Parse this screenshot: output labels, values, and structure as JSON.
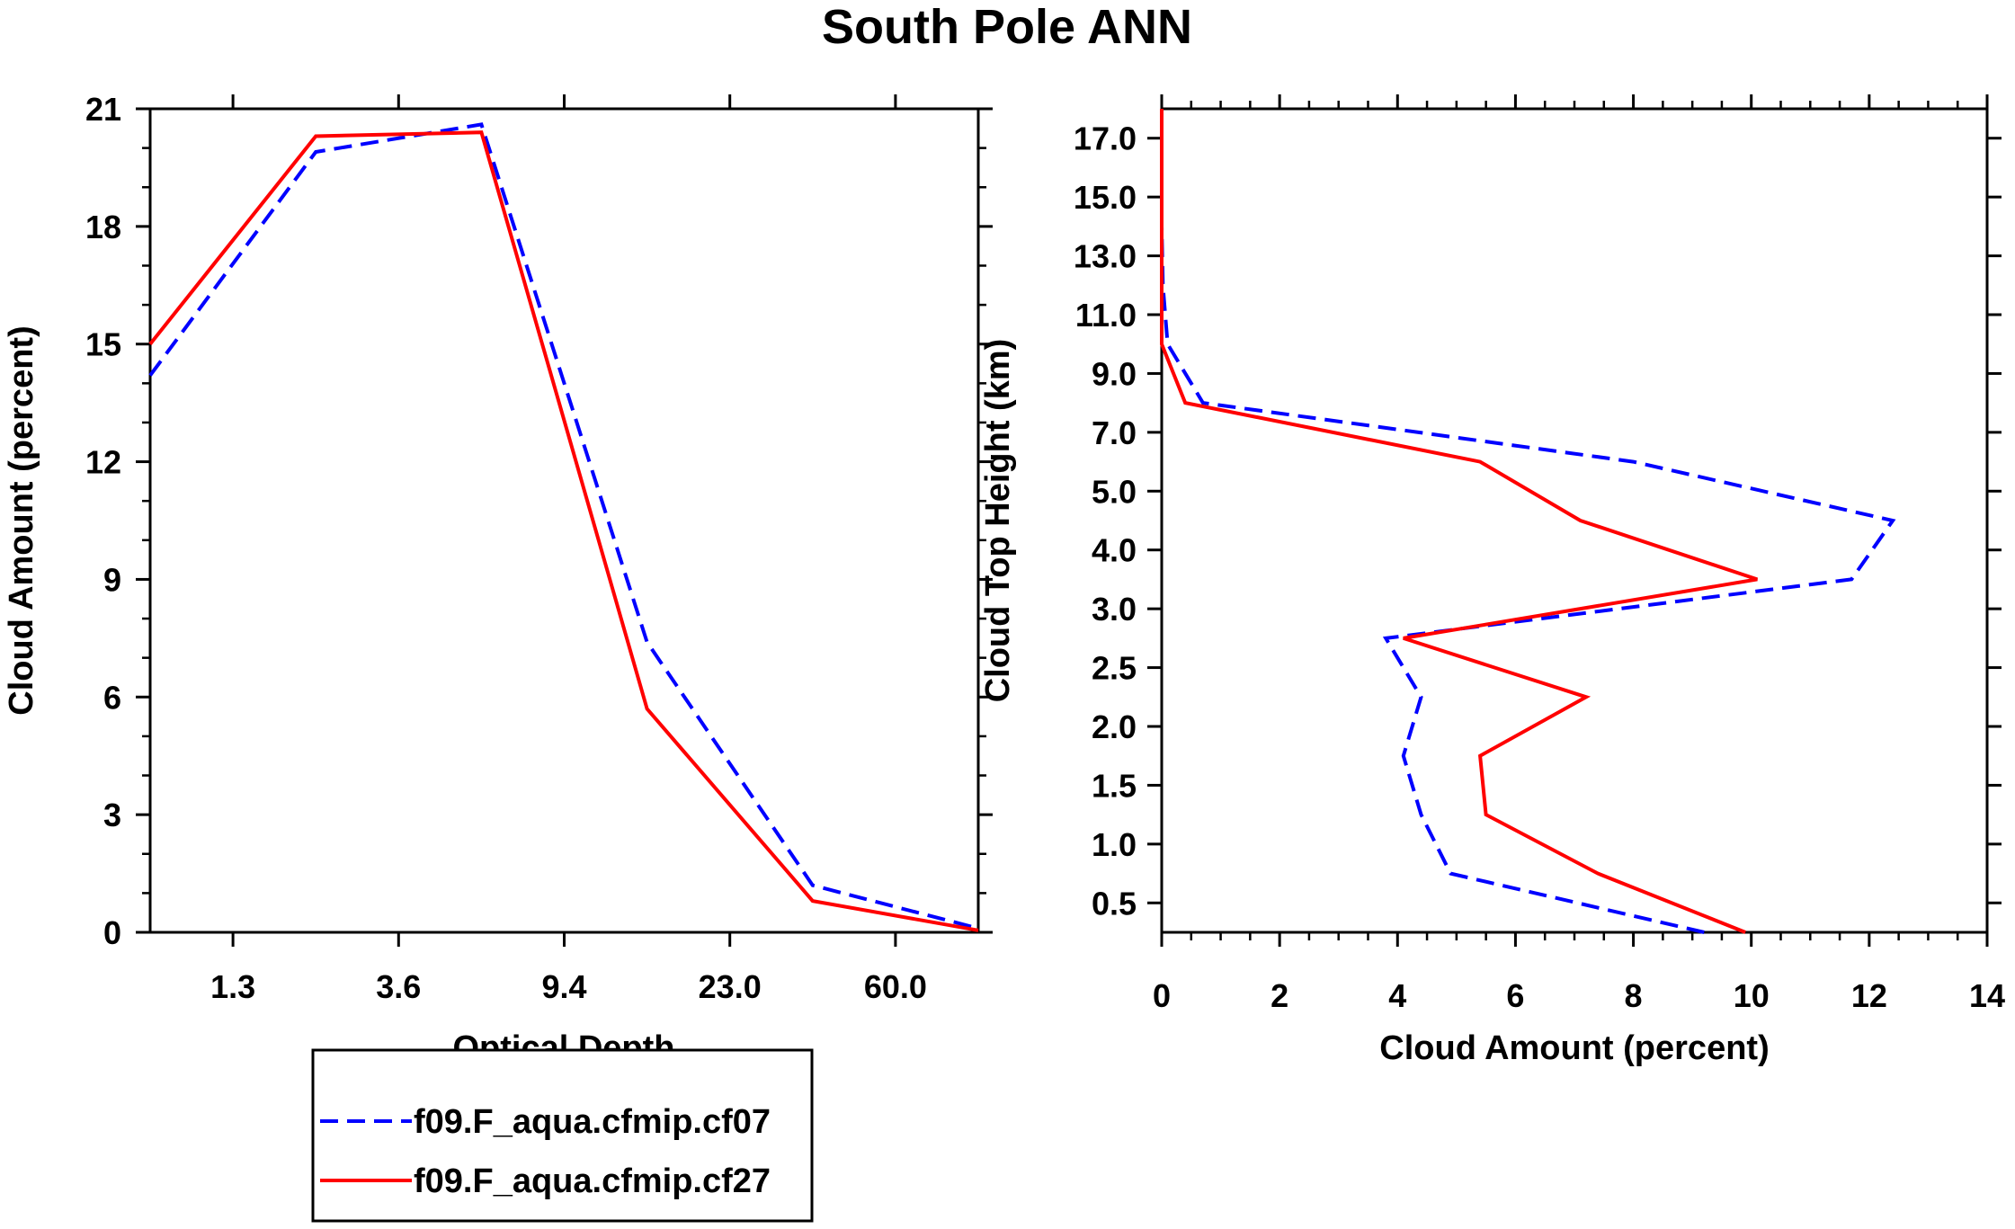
{
  "figure_title": "South Pole ANN",
  "colors": {
    "series1": "#0000ff",
    "series2": "#ff0000",
    "axis": "#000000"
  },
  "legend_entries": [
    "f09.F_aqua.cfmip.cf07",
    "f09.F_aqua.cfmip.cf27"
  ],
  "chart_data": [
    {
      "type": "line",
      "title": "South Pole ANN",
      "xlabel": "Optical Depth",
      "ylabel": "Cloud Amount (percent)",
      "x_tick_labels": [
        "1.3",
        "3.6",
        "9.4",
        "23.0",
        "60.0"
      ],
      "x_tick_positions": [
        1,
        3,
        5,
        7,
        9
      ],
      "xlim": [
        0,
        10
      ],
      "ylim": [
        0,
        21
      ],
      "y_ticks": [
        "0",
        "3",
        "6",
        "9",
        "12",
        "15",
        "18",
        "21"
      ],
      "series": [
        {
          "name": "f09.F_aqua.cfmip.cf07",
          "style": "dashed",
          "x": [
            0,
            2,
            4,
            6,
            8,
            10
          ],
          "values": [
            14.2,
            19.9,
            20.6,
            7.4,
            1.2,
            0.1
          ]
        },
        {
          "name": "f09.F_aqua.cfmip.cf27",
          "style": "solid",
          "x": [
            0,
            2,
            4,
            6,
            8,
            10
          ],
          "values": [
            15.0,
            20.3,
            20.4,
            5.7,
            0.8,
            0.05
          ]
        }
      ]
    },
    {
      "type": "line",
      "xlabel": "Cloud Amount (percent)",
      "ylabel": "Cloud Top Height (km)",
      "xlim": [
        0,
        14
      ],
      "x_ticks": [
        "0",
        "2",
        "4",
        "6",
        "8",
        "10",
        "12",
        "14"
      ],
      "y_tick_labels": [
        "0.5",
        "1.0",
        "1.5",
        "2.0",
        "2.5",
        "3.0",
        "4.0",
        "5.0",
        "7.0",
        "9.0",
        "11.0",
        "13.0",
        "15.0",
        "17.0"
      ],
      "y_tick_positions": [
        0.5,
        1.5,
        2.5,
        3.5,
        4.5,
        5.5,
        6.5,
        7.5,
        8.5,
        9.5,
        10.5,
        11.5,
        12.5,
        13.5
      ],
      "ylim": [
        0,
        14
      ],
      "series": [
        {
          "name": "f09.F_aqua.cfmip.cf07",
          "style": "dashed",
          "y": [
            0,
            1,
            2,
            3,
            4,
            5,
            5,
            6,
            7,
            8,
            9,
            10,
            11,
            12,
            13,
            14
          ],
          "values": [
            9.2,
            4.9,
            4.4,
            4.1,
            4.4,
            3.8,
            3.8,
            11.7,
            12.4,
            8.0,
            0.7,
            0.1,
            0.02,
            0.0,
            0.0,
            0.0
          ]
        },
        {
          "name": "f09.F_aqua.cfmip.cf27",
          "style": "solid",
          "y": [
            0,
            1,
            2,
            3,
            4,
            5,
            5,
            6,
            7,
            8,
            9,
            10,
            11,
            12,
            13,
            14
          ],
          "values": [
            9.9,
            7.4,
            5.5,
            5.4,
            7.2,
            4.1,
            4.1,
            10.1,
            7.1,
            5.4,
            0.4,
            0.0,
            0.0,
            0.0,
            0.0,
            0.0
          ]
        }
      ]
    }
  ]
}
